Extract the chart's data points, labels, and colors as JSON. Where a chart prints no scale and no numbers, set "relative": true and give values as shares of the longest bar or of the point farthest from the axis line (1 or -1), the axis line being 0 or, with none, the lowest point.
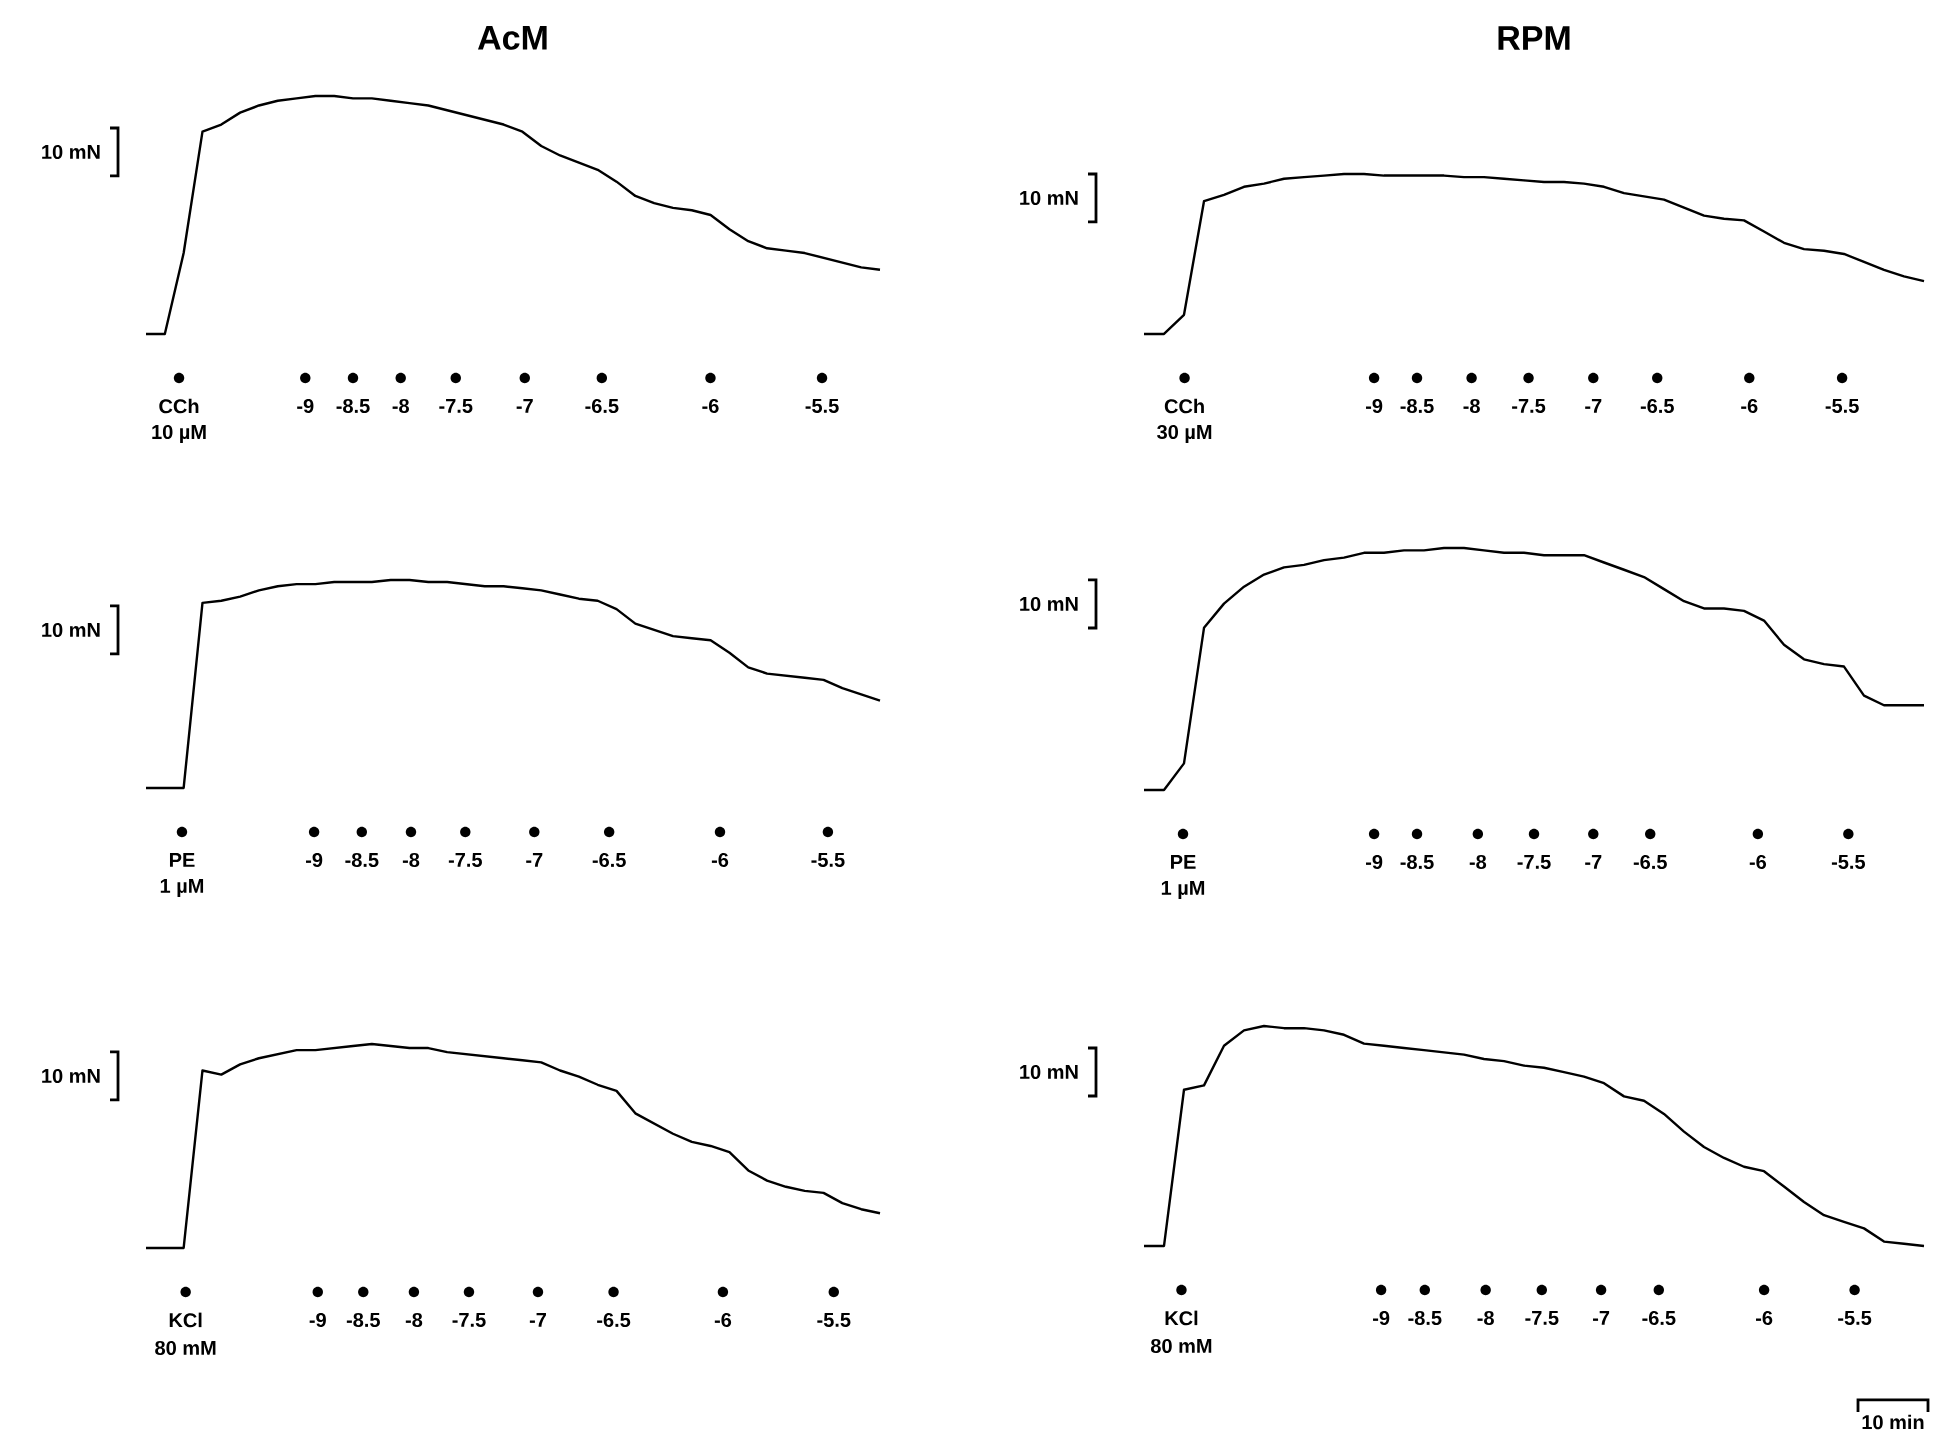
{
  "chart_data": [
    {
      "type": "line",
      "title": "AcM",
      "relative": true,
      "color": "#000000",
      "tick_labels": false,
      "categories": [
        null,
        null,
        null,
        null,
        null,
        null,
        null,
        null,
        null,
        null,
        null,
        null,
        null,
        null,
        null,
        null,
        null,
        null,
        null,
        null,
        null,
        null,
        null,
        null,
        null,
        null,
        null,
        null,
        null,
        null,
        null,
        null,
        null,
        null,
        null,
        null,
        null,
        null,
        null,
        null
      ],
      "values": [
        0,
        0,
        0.34,
        0.85,
        0.88,
        0.93,
        0.96,
        0.98,
        0.99,
        1.0,
        1.0,
        0.99,
        0.99,
        0.98,
        0.97,
        0.96,
        0.94,
        0.92,
        0.9,
        0.88,
        0.85,
        0.79,
        0.75,
        0.72,
        0.69,
        0.64,
        0.58,
        0.55,
        0.53,
        0.52,
        0.5,
        0.44,
        0.39,
        0.36,
        0.35,
        0.34,
        0.32,
        0.3,
        0.28,
        0.27
      ],
      "annotations": [
        "10 mN",
        "CCh",
        "10 µM",
        "-9",
        "-8.5",
        "-8",
        "-7.5",
        "-7",
        "-6.5",
        "-6",
        "-5.5"
      ]
    },
    {
      "type": "line",
      "title": "RPM",
      "relative": true,
      "color": "#000000",
      "tick_labels": false,
      "categories": [
        null,
        null,
        null,
        null,
        null,
        null,
        null,
        null,
        null,
        null,
        null,
        null,
        null,
        null,
        null,
        null,
        null,
        null,
        null,
        null,
        null,
        null,
        null,
        null,
        null,
        null,
        null,
        null,
        null,
        null,
        null,
        null,
        null,
        null,
        null,
        null,
        null,
        null,
        null,
        null
      ],
      "values": [
        0,
        0,
        0.12,
        0.83,
        0.87,
        0.92,
        0.94,
        0.97,
        0.98,
        0.99,
        1.0,
        1.0,
        0.99,
        0.99,
        0.99,
        0.99,
        0.98,
        0.98,
        0.97,
        0.96,
        0.95,
        0.95,
        0.94,
        0.92,
        0.88,
        0.86,
        0.84,
        0.79,
        0.74,
        0.72,
        0.71,
        0.64,
        0.57,
        0.53,
        0.52,
        0.5,
        0.45,
        0.4,
        0.36,
        0.33
      ],
      "annotations": [
        "10 mN",
        "CCh",
        "30 µM",
        "-9",
        "-8.5",
        "-8",
        "-7.5",
        "-7",
        "-6.5",
        "-6",
        "-5.5"
      ]
    },
    {
      "type": "line",
      "relative": true,
      "color": "#000000",
      "tick_labels": false,
      "categories": [
        null,
        null,
        null,
        null,
        null,
        null,
        null,
        null,
        null,
        null,
        null,
        null,
        null,
        null,
        null,
        null,
        null,
        null,
        null,
        null,
        null,
        null,
        null,
        null,
        null,
        null,
        null,
        null,
        null,
        null,
        null,
        null,
        null,
        null,
        null,
        null,
        null,
        null,
        null,
        null
      ],
      "values": [
        0,
        0,
        0,
        0.89,
        0.9,
        0.92,
        0.95,
        0.97,
        0.98,
        0.98,
        0.99,
        0.99,
        0.99,
        1.0,
        1.0,
        0.99,
        0.99,
        0.98,
        0.97,
        0.97,
        0.96,
        0.95,
        0.93,
        0.91,
        0.9,
        0.86,
        0.79,
        0.76,
        0.73,
        0.72,
        0.71,
        0.65,
        0.58,
        0.55,
        0.54,
        0.53,
        0.52,
        0.48,
        0.45,
        0.42
      ],
      "annotations": [
        "10 mN",
        "PE",
        "1 µM",
        "-9",
        "-8.5",
        "-8",
        "-7.5",
        "-7",
        "-6.5",
        "-6",
        "-5.5"
      ]
    },
    {
      "type": "line",
      "relative": true,
      "color": "#000000",
      "tick_labels": false,
      "categories": [
        null,
        null,
        null,
        null,
        null,
        null,
        null,
        null,
        null,
        null,
        null,
        null,
        null,
        null,
        null,
        null,
        null,
        null,
        null,
        null,
        null,
        null,
        null,
        null,
        null,
        null,
        null,
        null,
        null,
        null,
        null,
        null,
        null,
        null,
        null,
        null,
        null,
        null,
        null,
        null
      ],
      "values": [
        0,
        0,
        0.11,
        0.67,
        0.77,
        0.84,
        0.89,
        0.92,
        0.93,
        0.95,
        0.96,
        0.98,
        0.98,
        0.99,
        0.99,
        1.0,
        1.0,
        0.99,
        0.98,
        0.98,
        0.97,
        0.97,
        0.97,
        0.94,
        0.91,
        0.88,
        0.83,
        0.78,
        0.75,
        0.75,
        0.74,
        0.7,
        0.6,
        0.54,
        0.52,
        0.51,
        0.39,
        0.35,
        0.35,
        0.35
      ],
      "annotations": [
        "10 mN",
        "PE",
        "1 µM",
        "-9",
        "-8.5",
        "-8",
        "-7.5",
        "-7",
        "-6.5",
        "-6",
        "-5.5"
      ]
    },
    {
      "type": "line",
      "relative": true,
      "color": "#000000",
      "tick_labels": false,
      "categories": [
        null,
        null,
        null,
        null,
        null,
        null,
        null,
        null,
        null,
        null,
        null,
        null,
        null,
        null,
        null,
        null,
        null,
        null,
        null,
        null,
        null,
        null,
        null,
        null,
        null,
        null,
        null,
        null,
        null,
        null,
        null,
        null,
        null,
        null,
        null,
        null,
        null,
        null,
        null,
        null
      ],
      "values": [
        0,
        0,
        0,
        0.87,
        0.85,
        0.9,
        0.93,
        0.95,
        0.97,
        0.97,
        0.98,
        0.99,
        1.0,
        0.99,
        0.98,
        0.98,
        0.96,
        0.95,
        0.94,
        0.93,
        0.92,
        0.91,
        0.87,
        0.84,
        0.8,
        0.77,
        0.66,
        0.61,
        0.56,
        0.52,
        0.5,
        0.47,
        0.38,
        0.33,
        0.3,
        0.28,
        0.27,
        0.22,
        0.19,
        0.17
      ],
      "annotations": [
        "10 mN",
        "KCl",
        "80 mM",
        "-9",
        "-8.5",
        "-8",
        "-7.5",
        "-7",
        "-6.5",
        "-6",
        "-5.5"
      ]
    },
    {
      "type": "line",
      "relative": true,
      "color": "#000000",
      "tick_labels": false,
      "categories": [
        null,
        null,
        null,
        null,
        null,
        null,
        null,
        null,
        null,
        null,
        null,
        null,
        null,
        null,
        null,
        null,
        null,
        null,
        null,
        null,
        null,
        null,
        null,
        null,
        null,
        null,
        null,
        null,
        null,
        null,
        null,
        null,
        null,
        null,
        null,
        null,
        null,
        null,
        null,
        null
      ],
      "values": [
        0,
        0,
        0.71,
        0.73,
        0.91,
        0.98,
        1.0,
        0.99,
        0.99,
        0.98,
        0.96,
        0.92,
        0.91,
        0.9,
        0.89,
        0.88,
        0.87,
        0.85,
        0.84,
        0.82,
        0.81,
        0.79,
        0.77,
        0.74,
        0.68,
        0.66,
        0.6,
        0.52,
        0.45,
        0.4,
        0.36,
        0.34,
        0.27,
        0.2,
        0.14,
        0.11,
        0.08,
        0.02,
        0.01,
        0
      ],
      "annotations": [
        "10 mN",
        "KCl",
        "80 mM",
        "-9",
        "-8.5",
        "-8",
        "-7.5",
        "-7",
        "-6.5",
        "-6",
        "-5.5",
        "10 min"
      ]
    }
  ]
}
